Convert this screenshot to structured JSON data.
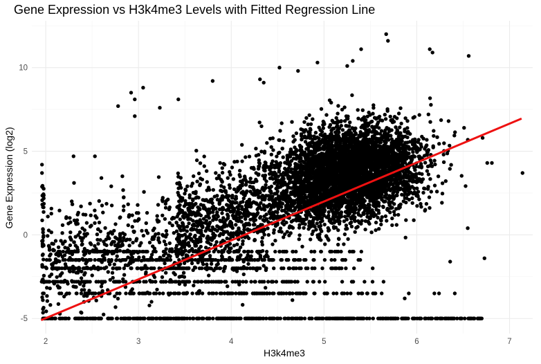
{
  "chart_data": {
    "type": "scatter",
    "title": "Gene Expression vs H3k4me3 Levels with Fitted Regression Line",
    "xlabel": "H3k4me3",
    "ylabel": "Gene Expression (log2)",
    "xlim": [
      1.85,
      7.25
    ],
    "ylim": [
      -5.9,
      12.8
    ],
    "x_ticks": [
      2,
      3,
      4,
      5,
      6,
      7
    ],
    "y_ticks": [
      -5,
      0,
      5,
      10
    ],
    "grid": true,
    "legend": "none",
    "point_color": "#000000",
    "approx_point_count": 6000,
    "regression_line": {
      "color": "#ee1111",
      "x": [
        1.95,
        7.13
      ],
      "y": [
        -5.1,
        6.95
      ]
    },
    "extreme_points": [
      {
        "x": 7.14,
        "y": 3.7
      },
      {
        "x": 6.81,
        "y": 4.3
      },
      {
        "x": 6.76,
        "y": 4.3
      },
      {
        "x": 6.71,
        "y": 5.8
      },
      {
        "x": 6.73,
        "y": -1.4
      },
      {
        "x": 6.7,
        "y": -5.0
      },
      {
        "x": 6.56,
        "y": 10.7
      },
      {
        "x": 6.51,
        "y": 6.4
      },
      {
        "x": 6.55,
        "y": 0.4
      },
      {
        "x": 6.47,
        "y": -5.0
      },
      {
        "x": 6.41,
        "y": -3.5
      },
      {
        "x": 6.36,
        "y": -1.6
      },
      {
        "x": 6.14,
        "y": 11.1
      },
      {
        "x": 6.17,
        "y": 10.9
      },
      {
        "x": 5.67,
        "y": 12.0
      },
      {
        "x": 5.69,
        "y": 11.6
      },
      {
        "x": 5.4,
        "y": 11.1
      },
      {
        "x": 5.31,
        "y": 10.4
      },
      {
        "x": 5.25,
        "y": 10.1
      },
      {
        "x": 4.93,
        "y": 10.3
      },
      {
        "x": 4.52,
        "y": 10.0
      },
      {
        "x": 4.35,
        "y": 9.1
      },
      {
        "x": 4.31,
        "y": 9.3
      },
      {
        "x": 4.72,
        "y": 9.8
      },
      {
        "x": 3.8,
        "y": 9.2
      },
      {
        "x": 3.05,
        "y": 8.8
      },
      {
        "x": 2.92,
        "y": 8.5
      },
      {
        "x": 2.96,
        "y": 8.1
      },
      {
        "x": 2.78,
        "y": 7.7
      },
      {
        "x": 2.96,
        "y": 7.1
      },
      {
        "x": 3.23,
        "y": 7.6
      },
      {
        "x": 3.43,
        "y": 8.1
      },
      {
        "x": 2.53,
        "y": 4.7
      },
      {
        "x": 2.6,
        "y": 3.4
      },
      {
        "x": 2.3,
        "y": 4.7
      },
      {
        "x": 1.96,
        "y": 4.2
      },
      {
        "x": 1.96,
        "y": 3.7
      },
      {
        "x": 2.28,
        "y": 2.0
      },
      {
        "x": 3.14,
        "y": -4.0
      },
      {
        "x": 3.84,
        "y": -3.5
      },
      {
        "x": 4.66,
        "y": -3.9
      },
      {
        "x": 4.9,
        "y": -3.5
      },
      {
        "x": 5.87,
        "y": -3.8
      },
      {
        "x": 6.19,
        "y": -3.5
      },
      {
        "x": 6.24,
        "y": -3.5
      }
    ],
    "point_bands": [
      {
        "y": -5.0,
        "x_range": [
          1.95,
          6.7
        ],
        "description": "dense horizontal band"
      },
      {
        "y": -3.5,
        "x_range": [
          1.95,
          6.0
        ]
      },
      {
        "y": -2.8,
        "x_range": [
          1.95,
          5.8
        ]
      },
      {
        "y": -2.0,
        "x_range": [
          2.0,
          5.7
        ]
      },
      {
        "y": -1.5,
        "x_range": [
          2.0,
          5.6
        ]
      },
      {
        "y": -1.0,
        "x_range": [
          2.1,
          5.6
        ]
      }
    ],
    "main_cluster": {
      "x_center": 5.3,
      "y_center": 3.8,
      "x_range": [
        3.6,
        6.5
      ],
      "y_range": [
        -1.0,
        9.5
      ]
    }
  }
}
